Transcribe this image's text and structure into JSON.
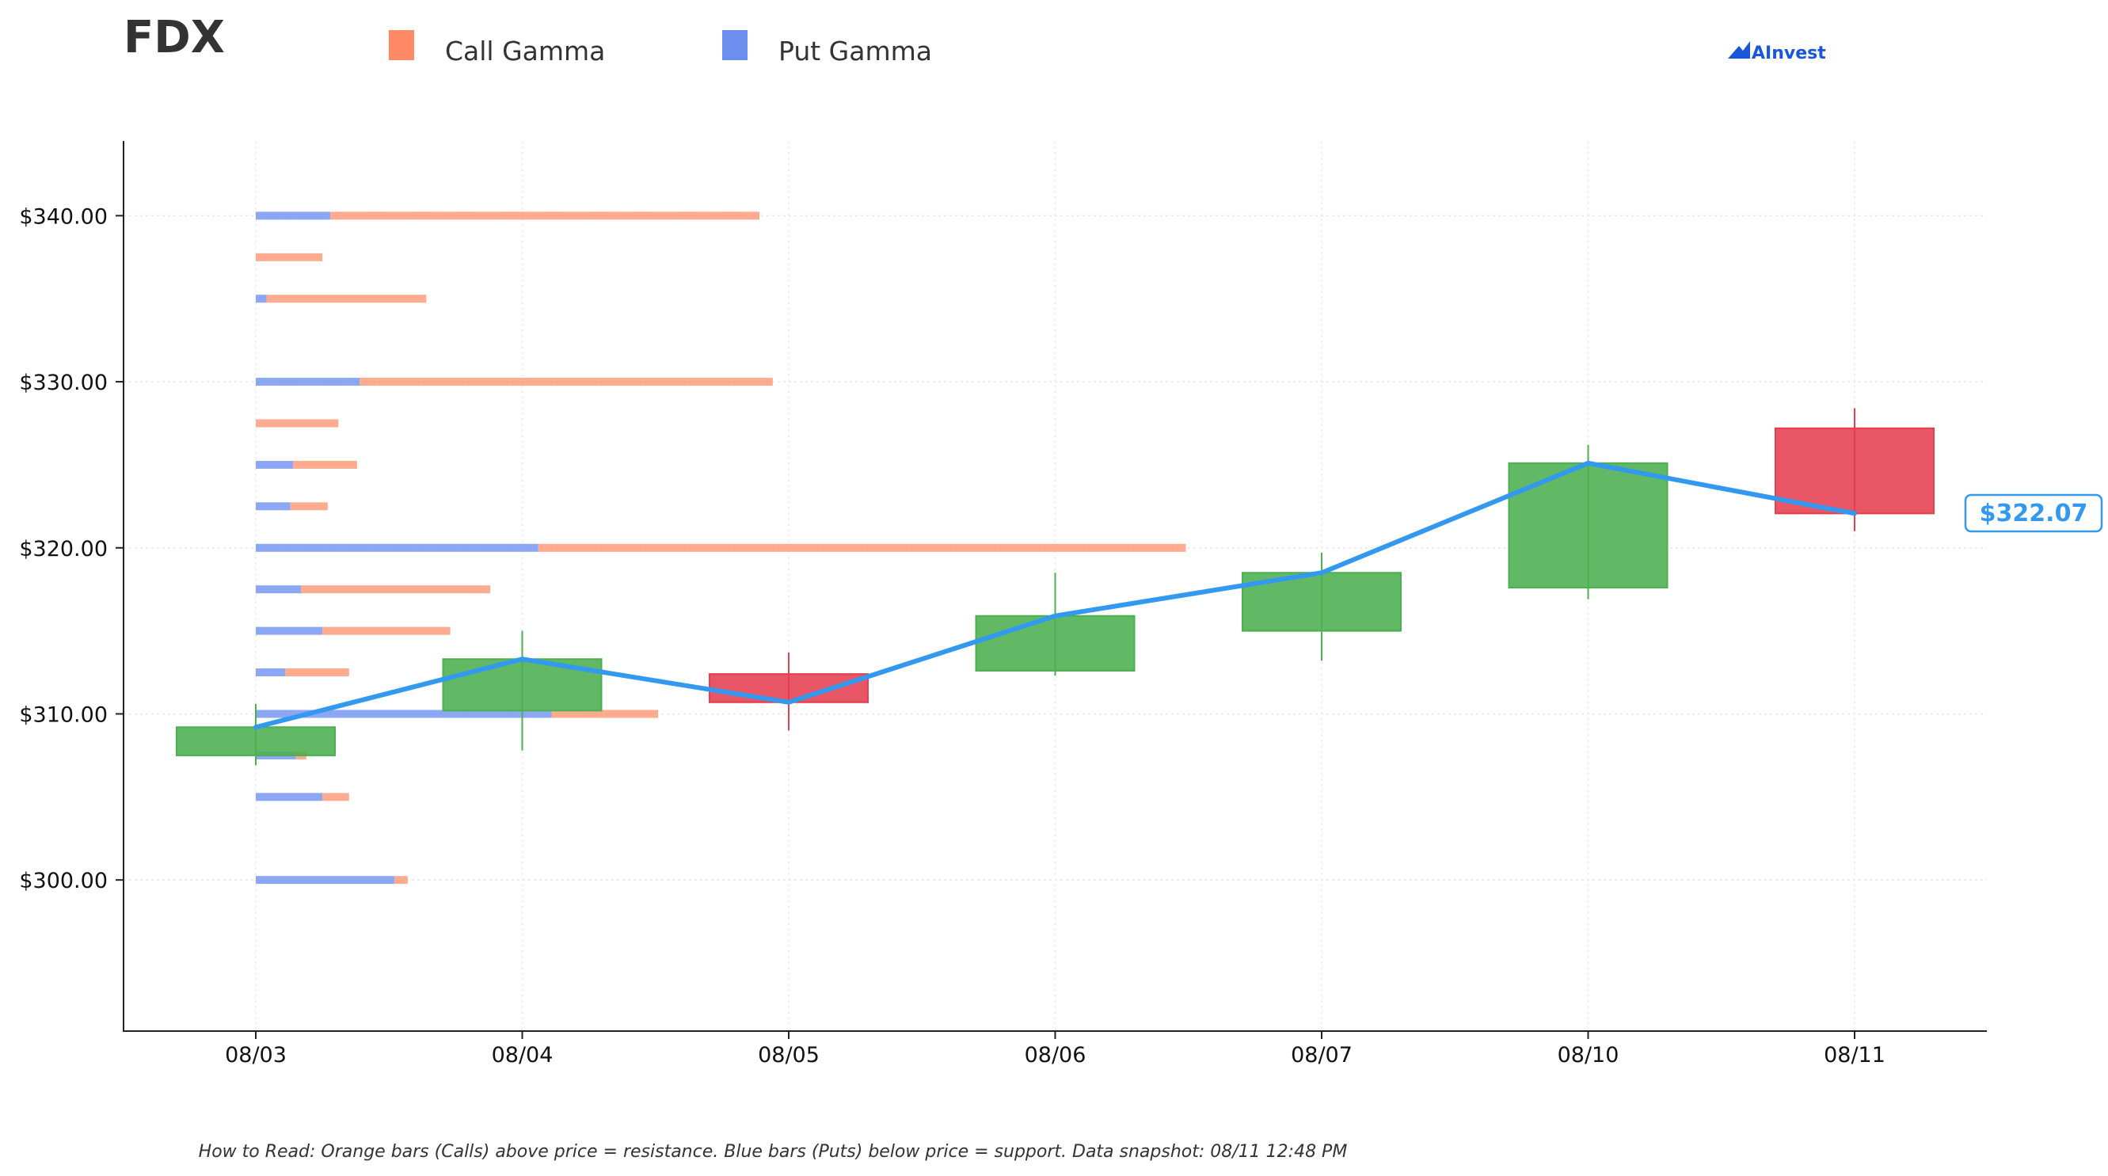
{
  "header": {
    "ticker": "FDX",
    "brand": "AInvest"
  },
  "legend": {
    "call_label": "Call Gamma",
    "put_label": "Put Gamma"
  },
  "colors": {
    "call": "#FF8A65",
    "put": "#6C8EEF",
    "up": "#4CAF50",
    "down": "#E53E4F",
    "price_line": "#3399EE",
    "text": "#333333",
    "brand": "#1A56DB"
  },
  "footer": {
    "note": "How to Read: Orange bars (Calls) above price = resistance. Blue bars (Puts) below price = support. Data snapshot: 08/11 12:48 PM"
  },
  "chart_data": {
    "type": "candlestick",
    "categories": [
      "08/03",
      "08/04",
      "08/05",
      "08/06",
      "08/07",
      "08/10",
      "08/11"
    ],
    "ylim": [
      290.9,
      344.5
    ],
    "yticks": [
      300,
      310,
      320,
      330,
      340
    ],
    "ytick_labels": [
      "$300.00",
      "$310.00",
      "$320.00",
      "$330.00",
      "$340.00"
    ],
    "candles": [
      {
        "date": "08/03",
        "open": 307.5,
        "high": 310.6,
        "low": 306.9,
        "close": 309.2
      },
      {
        "date": "08/04",
        "open": 310.2,
        "high": 315.0,
        "low": 307.8,
        "close": 313.3
      },
      {
        "date": "08/05",
        "open": 312.4,
        "high": 313.7,
        "low": 309.0,
        "close": 310.7
      },
      {
        "date": "08/06",
        "open": 312.6,
        "high": 318.5,
        "low": 312.3,
        "close": 315.9
      },
      {
        "date": "08/07",
        "open": 315.0,
        "high": 319.7,
        "low": 313.2,
        "close": 318.5
      },
      {
        "date": "08/10",
        "open": 317.6,
        "high": 326.2,
        "low": 316.9,
        "close": 325.1
      },
      {
        "date": "08/11",
        "open": 327.2,
        "high": 328.4,
        "low": 321.0,
        "close": 322.07
      }
    ],
    "price_line": [
      309.2,
      313.3,
      310.7,
      315.9,
      318.5,
      325.1,
      322.07
    ],
    "last_price": 322.07,
    "last_price_label": "$322.07",
    "gamma_scale_note": "gamma bar lengths in units of x-axis day spacing",
    "gamma": [
      {
        "strike": 340.0,
        "put": 0.28,
        "call": 1.61
      },
      {
        "strike": 337.5,
        "put": 0.0,
        "call": 0.25
      },
      {
        "strike": 335.0,
        "put": 0.04,
        "call": 0.6
      },
      {
        "strike": 330.0,
        "put": 0.39,
        "call": 1.55
      },
      {
        "strike": 327.5,
        "put": 0.0,
        "call": 0.31
      },
      {
        "strike": 325.0,
        "put": 0.14,
        "call": 0.24
      },
      {
        "strike": 322.5,
        "put": 0.13,
        "call": 0.14
      },
      {
        "strike": 320.0,
        "put": 1.06,
        "call": 2.43
      },
      {
        "strike": 317.5,
        "put": 0.17,
        "call": 0.71
      },
      {
        "strike": 315.0,
        "put": 0.25,
        "call": 0.48
      },
      {
        "strike": 312.5,
        "put": 0.11,
        "call": 0.24
      },
      {
        "strike": 310.0,
        "put": 1.11,
        "call": 0.4
      },
      {
        "strike": 307.5,
        "put": 0.15,
        "call": 0.04
      },
      {
        "strike": 305.0,
        "put": 0.25,
        "call": 0.1
      },
      {
        "strike": 300.0,
        "put": 0.52,
        "call": 0.05
      }
    ]
  }
}
